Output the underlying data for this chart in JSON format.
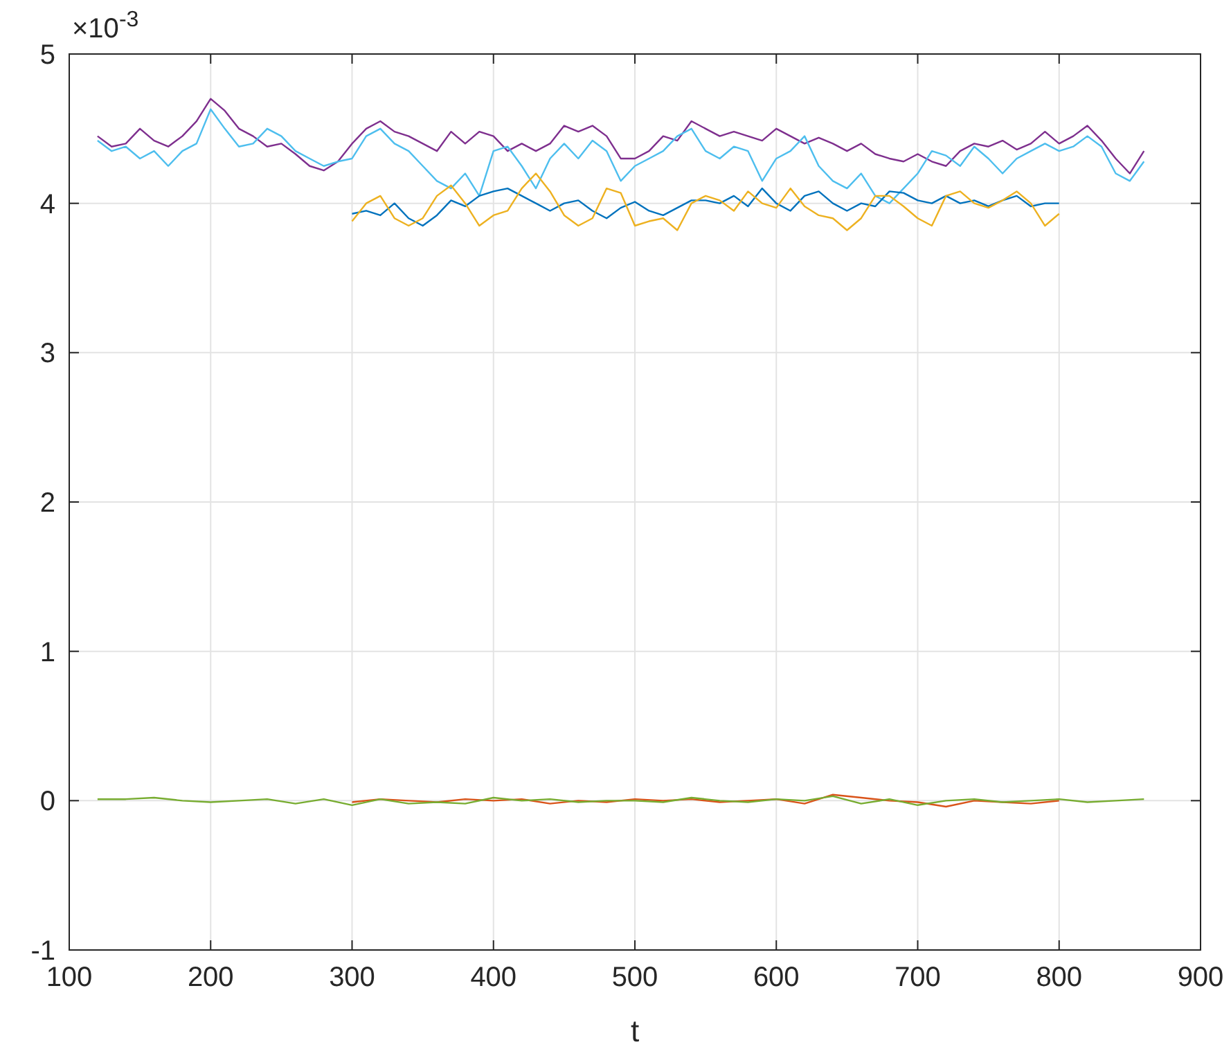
{
  "chart_data": {
    "type": "line",
    "xlabel": "t",
    "xlim": [
      100,
      900
    ],
    "xticks": [
      100,
      200,
      300,
      400,
      500,
      600,
      700,
      800,
      900
    ],
    "ylim": [
      -1,
      5
    ],
    "yticks": [
      -1,
      0,
      1,
      2,
      3,
      4,
      5
    ],
    "grid": true,
    "annotations": [
      "×10$^{-3}$"
    ],
    "series": [
      {
        "color": "#7e2f8e",
        "x": [
          120,
          130,
          140,
          150,
          160,
          170,
          180,
          190,
          200,
          210,
          220,
          230,
          240,
          250,
          260,
          270,
          280,
          290,
          300,
          310,
          320,
          330,
          340,
          350,
          360,
          370,
          380,
          390,
          400,
          410,
          420,
          430,
          440,
          450,
          460,
          470,
          480,
          490,
          500,
          510,
          520,
          530,
          540,
          550,
          560,
          570,
          580,
          590,
          600,
          610,
          620,
          630,
          640,
          650,
          660,
          670,
          680,
          690,
          700,
          710,
          720,
          730,
          740,
          750,
          760,
          770,
          780,
          790,
          800,
          810,
          820,
          830,
          840,
          850,
          860
        ],
        "values": [
          4.45,
          4.38,
          4.4,
          4.5,
          4.42,
          4.38,
          4.45,
          4.55,
          4.7,
          4.62,
          4.5,
          4.45,
          4.38,
          4.4,
          4.33,
          4.25,
          4.22,
          4.28,
          4.4,
          4.5,
          4.55,
          4.48,
          4.45,
          4.4,
          4.35,
          4.48,
          4.4,
          4.48,
          4.45,
          4.35,
          4.4,
          4.35,
          4.4,
          4.52,
          4.48,
          4.52,
          4.45,
          4.3,
          4.3,
          4.35,
          4.45,
          4.42,
          4.55,
          4.5,
          4.45,
          4.48,
          4.45,
          4.42,
          4.5,
          4.45,
          4.4,
          4.44,
          4.4,
          4.35,
          4.4,
          4.33,
          4.3,
          4.28,
          4.33,
          4.28,
          4.25,
          4.35,
          4.4,
          4.38,
          4.42,
          4.36,
          4.4,
          4.48,
          4.4,
          4.45,
          4.52,
          4.42,
          4.3,
          4.2,
          4.35
        ]
      },
      {
        "color": "#4dbeee",
        "x": [
          120,
          130,
          140,
          150,
          160,
          170,
          180,
          190,
          200,
          210,
          220,
          230,
          240,
          250,
          260,
          270,
          280,
          290,
          300,
          310,
          320,
          330,
          340,
          350,
          360,
          370,
          380,
          390,
          400,
          410,
          420,
          430,
          440,
          450,
          460,
          470,
          480,
          490,
          500,
          510,
          520,
          530,
          540,
          550,
          560,
          570,
          580,
          590,
          600,
          610,
          620,
          630,
          640,
          650,
          660,
          670,
          680,
          690,
          700,
          710,
          720,
          730,
          740,
          750,
          760,
          770,
          780,
          790,
          800,
          810,
          820,
          830,
          840,
          850,
          860
        ],
        "values": [
          4.42,
          4.35,
          4.38,
          4.3,
          4.35,
          4.25,
          4.35,
          4.4,
          4.63,
          4.5,
          4.38,
          4.4,
          4.5,
          4.45,
          4.35,
          4.3,
          4.25,
          4.28,
          4.3,
          4.45,
          4.5,
          4.4,
          4.35,
          4.25,
          4.15,
          4.1,
          4.2,
          4.05,
          4.35,
          4.38,
          4.25,
          4.1,
          4.3,
          4.4,
          4.3,
          4.42,
          4.35,
          4.15,
          4.25,
          4.3,
          4.35,
          4.45,
          4.5,
          4.35,
          4.3,
          4.38,
          4.35,
          4.15,
          4.3,
          4.35,
          4.45,
          4.25,
          4.15,
          4.1,
          4.2,
          4.05,
          4,
          4.1,
          4.2,
          4.35,
          4.32,
          4.25,
          4.38,
          4.3,
          4.2,
          4.3,
          4.35,
          4.4,
          4.35,
          4.38,
          4.45,
          4.38,
          4.2,
          4.15,
          4.28
        ]
      },
      {
        "color": "#0072bd",
        "x": [
          300,
          310,
          320,
          330,
          340,
          350,
          360,
          370,
          380,
          390,
          400,
          410,
          420,
          430,
          440,
          450,
          460,
          470,
          480,
          490,
          500,
          510,
          520,
          530,
          540,
          550,
          560,
          570,
          580,
          590,
          600,
          610,
          620,
          630,
          640,
          650,
          660,
          670,
          680,
          690,
          700,
          710,
          720,
          730,
          740,
          750,
          760,
          770,
          780,
          790,
          800
        ],
        "values": [
          3.93,
          3.95,
          3.92,
          4,
          3.9,
          3.85,
          3.92,
          4.02,
          3.98,
          4.05,
          4.08,
          4.1,
          4.05,
          4,
          3.95,
          4,
          4.02,
          3.95,
          3.9,
          3.97,
          4.01,
          3.95,
          3.92,
          3.97,
          4.02,
          4.02,
          4,
          4.05,
          3.98,
          4.1,
          4,
          3.95,
          4.05,
          4.08,
          4,
          3.95,
          4,
          3.98,
          4.08,
          4.07,
          4.02,
          4,
          4.05,
          4,
          4.02,
          3.98,
          4.02,
          4.05,
          3.98,
          4,
          4
        ]
      },
      {
        "color": "#edb120",
        "x": [
          300,
          310,
          320,
          330,
          340,
          350,
          360,
          370,
          380,
          390,
          400,
          410,
          420,
          430,
          440,
          450,
          460,
          470,
          480,
          490,
          500,
          510,
          520,
          530,
          540,
          550,
          560,
          570,
          580,
          590,
          600,
          610,
          620,
          630,
          640,
          650,
          660,
          670,
          680,
          690,
          700,
          710,
          720,
          730,
          740,
          750,
          760,
          770,
          780,
          790,
          800
        ],
        "values": [
          3.88,
          4,
          4.05,
          3.9,
          3.85,
          3.9,
          4.05,
          4.12,
          4,
          3.85,
          3.92,
          3.95,
          4.1,
          4.2,
          4.08,
          3.92,
          3.85,
          3.9,
          4.1,
          4.07,
          3.85,
          3.88,
          3.9,
          3.82,
          4,
          4.05,
          4.02,
          3.95,
          4.08,
          4,
          3.97,
          4.1,
          3.98,
          3.92,
          3.9,
          3.82,
          3.9,
          4.05,
          4.05,
          3.98,
          3.9,
          3.85,
          4.05,
          4.08,
          4,
          3.97,
          4.02,
          4.08,
          4,
          3.85,
          3.93
        ]
      },
      {
        "color": "#d95319",
        "x": [
          300,
          320,
          340,
          360,
          380,
          400,
          420,
          440,
          460,
          480,
          500,
          520,
          540,
          560,
          580,
          600,
          620,
          640,
          660,
          680,
          700,
          720,
          740,
          760,
          780,
          800
        ],
        "values": [
          -0.01,
          0.01,
          0,
          -0.01,
          0.01,
          0,
          0.01,
          -0.02,
          0,
          -0.01,
          0.01,
          0,
          0.01,
          -0.01,
          0,
          0.01,
          -0.02,
          0.04,
          0.02,
          0,
          -0.01,
          -0.04,
          0,
          -0.01,
          -0.02,
          0
        ]
      },
      {
        "color": "#77ac30",
        "x": [
          120,
          140,
          160,
          180,
          200,
          220,
          240,
          260,
          280,
          300,
          320,
          340,
          360,
          380,
          400,
          420,
          440,
          460,
          480,
          500,
          520,
          540,
          560,
          580,
          600,
          620,
          640,
          660,
          680,
          700,
          720,
          740,
          760,
          780,
          800,
          820,
          840,
          860
        ],
        "values": [
          0.01,
          0.01,
          0.02,
          0,
          -0.01,
          0,
          0.01,
          -0.02,
          0.01,
          -0.03,
          0.01,
          -0.02,
          -0.01,
          -0.02,
          0.02,
          0,
          0.01,
          -0.01,
          0,
          0,
          -0.01,
          0.02,
          0,
          -0.01,
          0.01,
          0,
          0.03,
          -0.02,
          0.01,
          -0.03,
          0,
          0.01,
          -0.01,
          0,
          0.01,
          -0.01,
          0,
          0.01
        ]
      }
    ]
  }
}
